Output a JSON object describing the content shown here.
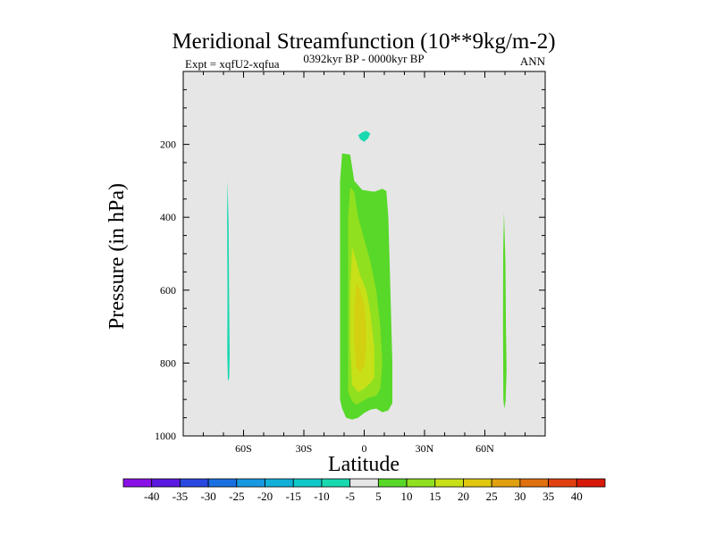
{
  "chart_data": {
    "type": "heatmap",
    "title": "Meridional Streamfunction (10**9kg/m-2)",
    "left_label": "Expt = xqfU2-xqfua",
    "center_label": "0392kyr BP - 0000kyr BP",
    "right_label": "ANN",
    "xlabel": "Latitude",
    "ylabel": "Pressure (in hPa)",
    "xlim": [
      -90,
      90
    ],
    "ylim": [
      1000,
      0
    ],
    "x_ticks": [
      {
        "value": -60,
        "label": "60S"
      },
      {
        "value": -30,
        "label": "30S"
      },
      {
        "value": 0,
        "label": "0"
      },
      {
        "value": 30,
        "label": "30N"
      },
      {
        "value": 60,
        "label": "60N"
      }
    ],
    "y_ticks": [
      {
        "value": 200,
        "label": "200"
      },
      {
        "value": 400,
        "label": "400"
      },
      {
        "value": 600,
        "label": "600"
      },
      {
        "value": 800,
        "label": "800"
      },
      {
        "value": 1000,
        "label": "1000"
      }
    ],
    "background_color": "#e6e6e6",
    "colorbar": {
      "levels": [
        "-40",
        "-35",
        "-30",
        "-25",
        "-20",
        "-15",
        "-10",
        "-5",
        "5",
        "10",
        "15",
        "20",
        "25",
        "30",
        "35",
        "40"
      ],
      "colors": [
        "#8a10e8",
        "#5a18e0",
        "#2848e0",
        "#1a70e0",
        "#1898e0",
        "#10b0d8",
        "#10c8c8",
        "#18d8b0",
        "#e6e6e6",
        "#58d828",
        "#90e020",
        "#c8e018",
        "#e0c810",
        "#e0a010",
        "#e07010",
        "#e04010",
        "#d81808"
      ]
    },
    "regions": [
      {
        "name": "contour-5-10-band",
        "level": "5 to 10",
        "color": "#58d828",
        "points": [
          [
            -11,
            225
          ],
          [
            -7,
            228
          ],
          [
            -5,
            300
          ],
          [
            -1,
            325
          ],
          [
            5,
            330
          ],
          [
            9,
            322
          ],
          [
            11,
            328
          ],
          [
            12,
            400
          ],
          [
            13,
            600
          ],
          [
            14,
            800
          ],
          [
            14,
            910
          ],
          [
            12,
            930
          ],
          [
            9,
            935
          ],
          [
            6,
            925
          ],
          [
            3,
            928
          ],
          [
            0,
            937
          ],
          [
            -3,
            950
          ],
          [
            -6,
            955
          ],
          [
            -9,
            950
          ],
          [
            -11,
            925
          ],
          [
            -12,
            900
          ],
          [
            -12,
            700
          ],
          [
            -12,
            500
          ],
          [
            -12,
            300
          ]
        ]
      },
      {
        "name": "contour-10-15-band",
        "level": "10 to 15",
        "color": "#90e020",
        "points": [
          [
            -7,
            318
          ],
          [
            -5,
            330
          ],
          [
            -3,
            400
          ],
          [
            0,
            460
          ],
          [
            3,
            520
          ],
          [
            6,
            600
          ],
          [
            8,
            700
          ],
          [
            9,
            800
          ],
          [
            8,
            870
          ],
          [
            6,
            890
          ],
          [
            2,
            895
          ],
          [
            -1,
            905
          ],
          [
            -4,
            915
          ],
          [
            -6,
            905
          ],
          [
            -8,
            880
          ],
          [
            -8,
            700
          ],
          [
            -8,
            500
          ],
          [
            -8,
            400
          ]
        ]
      },
      {
        "name": "contour-15-20-band",
        "level": "15 to 20",
        "color": "#c8e018",
        "points": [
          [
            -6,
            480
          ],
          [
            -4,
            520
          ],
          [
            -2,
            560
          ],
          [
            1,
            600
          ],
          [
            3,
            660
          ],
          [
            5,
            760
          ],
          [
            5,
            840
          ],
          [
            3,
            855
          ],
          [
            0,
            870
          ],
          [
            -3,
            880
          ],
          [
            -6,
            860
          ],
          [
            -7,
            750
          ],
          [
            -7,
            600
          ]
        ]
      },
      {
        "name": "contour-20-25-band",
        "level": "20 to 25",
        "color": "#d2d010",
        "points": [
          [
            -4,
            580
          ],
          [
            -2,
            600
          ],
          [
            0,
            640
          ],
          [
            1,
            700
          ],
          [
            1,
            760
          ],
          [
            0,
            810
          ],
          [
            -2,
            825
          ],
          [
            -4,
            812
          ],
          [
            -5,
            740
          ],
          [
            -5,
            650
          ]
        ]
      },
      {
        "name": "contour-neg-5-sliver-60S",
        "level": "-10 to -5",
        "color": "#18d8b0",
        "points": [
          [
            -68,
            300
          ],
          [
            -67.4,
            420
          ],
          [
            -67.2,
            600
          ],
          [
            -66.9,
            780
          ],
          [
            -67.1,
            840
          ],
          [
            -67.8,
            850
          ],
          [
            -68.1,
            780
          ],
          [
            -68,
            600
          ],
          [
            -68.2,
            400
          ]
        ]
      },
      {
        "name": "contour-5-sliver-70N",
        "level": "5 to 10",
        "color": "#58d828",
        "points": [
          [
            69.5,
            385
          ],
          [
            70.2,
            520
          ],
          [
            70.5,
            700
          ],
          [
            70.8,
            820
          ],
          [
            70.3,
            905
          ],
          [
            69.7,
            925
          ],
          [
            69.2,
            900
          ],
          [
            69,
            700
          ],
          [
            69.1,
            500
          ]
        ]
      },
      {
        "name": "contour-neg-5-blob-top",
        "level": "-10 to -5",
        "color": "#18d8b0",
        "points": [
          [
            -3,
            175
          ],
          [
            -1,
            167
          ],
          [
            1,
            163
          ],
          [
            3,
            170
          ],
          [
            2,
            183
          ],
          [
            0,
            193
          ],
          [
            -2,
            186
          ]
        ]
      }
    ]
  }
}
